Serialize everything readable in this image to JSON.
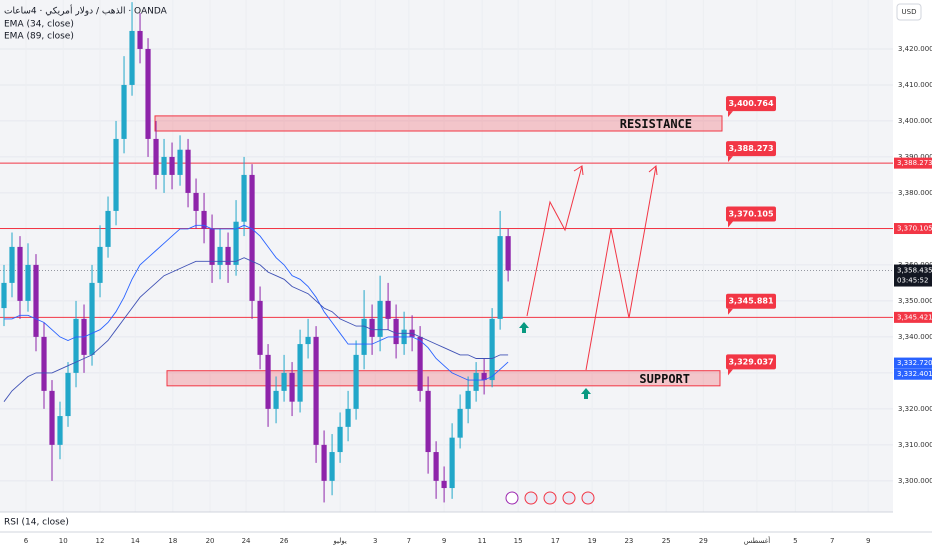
{
  "header": {
    "symbol": "الذهب / دولار أمريكي · 4ساعات · OANDA",
    "indicators": [
      "EMA (34, close)",
      "EMA (89, close)"
    ],
    "rsi": "RSI (14, close)",
    "currency": "USD"
  },
  "chart_data": {
    "type": "candlestick",
    "open": [
      3348,
      3355,
      3365,
      3350,
      3360,
      3340,
      3325,
      3310,
      3318,
      3330,
      3345,
      3335,
      3355,
      3365,
      3375,
      3395,
      3410,
      3425,
      3420,
      3395,
      3385,
      3390,
      3385,
      3392,
      3380,
      3375,
      3370,
      3360,
      3365,
      3360,
      3372,
      3385,
      3350,
      3335,
      3320,
      3325,
      3330,
      3322,
      3338,
      3340,
      3310,
      3300,
      3308,
      3315,
      3320,
      3335,
      3345,
      3340,
      3350,
      3345,
      3338,
      3342,
      3340,
      3325,
      3308,
      3300,
      3298,
      3312,
      3320,
      3325,
      3330,
      3328,
      3345,
      3368
    ],
    "high": [
      3360,
      3369,
      3368,
      3366,
      3363,
      3344,
      3328,
      3322,
      3333,
      3350,
      3349,
      3360,
      3371,
      3379,
      3400,
      3418,
      3433,
      3430,
      3423,
      3400,
      3395,
      3394,
      3396,
      3395,
      3384,
      3380,
      3374,
      3370,
      3369,
      3378,
      3390,
      3388,
      3354,
      3338,
      3329,
      3335,
      3333,
      3342,
      3345,
      3343,
      3314,
      3313,
      3319,
      3325,
      3339,
      3353,
      3349,
      3357,
      3355,
      3349,
      3347,
      3346,
      3343,
      3329,
      3311,
      3304,
      3316,
      3324,
      3329,
      3333,
      3334,
      3348,
      3375,
      3370
    ],
    "low": [
      3343,
      3351,
      3345,
      3347,
      3336,
      3320,
      3300,
      3306,
      3315,
      3326,
      3330,
      3332,
      3351,
      3362,
      3371,
      3391,
      3407,
      3416,
      3390,
      3381,
      3380,
      3381,
      3382,
      3376,
      3370,
      3366,
      3355,
      3356,
      3355,
      3357,
      3368,
      3345,
      3331,
      3315,
      3316,
      3322,
      3318,
      3319,
      3334,
      3305,
      3294,
      3296,
      3305,
      3311,
      3317,
      3331,
      3335,
      3336,
      3342,
      3334,
      3335,
      3336,
      3322,
      3302,
      3295,
      3294,
      3295,
      3309,
      3316,
      3322,
      3324,
      3326,
      3342,
      3355.4
    ],
    "close": [
      3355,
      3365,
      3350,
      3360,
      3340,
      3325,
      3310,
      3318,
      3330,
      3345,
      3335,
      3355,
      3365,
      3375,
      3395,
      3410,
      3425,
      3420,
      3395,
      3385,
      3390,
      3385,
      3392,
      3380,
      3375,
      3370,
      3360,
      3365,
      3360,
      3372,
      3385,
      3350,
      3335,
      3320,
      3325,
      3330,
      3322,
      3338,
      3340,
      3310,
      3300,
      3308,
      3315,
      3320,
      3335,
      3345,
      3340,
      3350,
      3345,
      3338,
      3342,
      3340,
      3325,
      3308,
      3300,
      3298,
      3312,
      3320,
      3325,
      3330,
      3328,
      3345,
      3368,
      3358.435
    ],
    "up_color": "#22a7c9",
    "down_color": "#8e24aa",
    "series": [
      {
        "name": "EMA (34, close)",
        "color": "#2962ff",
        "values": [
          3345,
          3345,
          3346,
          3346,
          3345,
          3344,
          3342,
          3340,
          3339,
          3340,
          3340,
          3341,
          3342,
          3344,
          3347,
          3351,
          3356,
          3360,
          3362,
          3364,
          3366,
          3368,
          3370,
          3370,
          3371,
          3371,
          3370,
          3370,
          3370,
          3370,
          3371,
          3370,
          3368,
          3365,
          3362,
          3360,
          3357,
          3356,
          3354,
          3351,
          3347,
          3344,
          3341,
          3338,
          3338,
          3338,
          3338,
          3339,
          3340,
          3340,
          3340,
          3340,
          3339,
          3337,
          3334,
          3332,
          3330,
          3329,
          3328,
          3328,
          3328,
          3329,
          3331,
          3333
        ]
      },
      {
        "name": "EMA (89, close)",
        "color": "#3f51b5",
        "values": [
          3322,
          3325,
          3327,
          3329,
          3330,
          3330,
          3330,
          3331,
          3332,
          3333,
          3334,
          3335,
          3337,
          3339,
          3342,
          3345,
          3348,
          3351,
          3353,
          3355,
          3357,
          3358,
          3359,
          3360,
          3361,
          3361,
          3361,
          3361,
          3361,
          3361,
          3362,
          3361,
          3360,
          3358,
          3357,
          3356,
          3354,
          3353,
          3352,
          3350,
          3348,
          3347,
          3345,
          3344,
          3343,
          3343,
          3342,
          3342,
          3342,
          3341,
          3341,
          3341,
          3340,
          3339,
          3338,
          3337,
          3336,
          3335,
          3335,
          3334,
          3334,
          3334,
          3335,
          3335
        ]
      }
    ],
    "xlim": [
      -0.5,
      111.1
    ],
    "ylim": [
      3291.9,
      3433.6
    ],
    "xticks": [
      {
        "value": 2.75,
        "label": "6"
      },
      {
        "value": 7.4,
        "label": "10"
      },
      {
        "value": 12,
        "label": "12"
      },
      {
        "value": 16.4,
        "label": "14"
      },
      {
        "value": 21.1,
        "label": "18"
      },
      {
        "value": 25.75,
        "label": "20"
      },
      {
        "value": 30.25,
        "label": "24"
      },
      {
        "value": 35,
        "label": "26"
      },
      {
        "value": 42,
        "label": "يوليو"
      },
      {
        "value": 46.4,
        "label": "3"
      },
      {
        "value": 50.6,
        "label": "7"
      },
      {
        "value": 55,
        "label": "9"
      },
      {
        "value": 59.75,
        "label": "11"
      },
      {
        "value": 64.25,
        "label": "15"
      },
      {
        "value": 68.9,
        "label": "17"
      },
      {
        "value": 73.5,
        "label": "19"
      },
      {
        "value": 78.1,
        "label": "23"
      },
      {
        "value": 82.75,
        "label": "25"
      },
      {
        "value": 87.4,
        "label": "29"
      },
      {
        "value": 94.1,
        "label": "أغسطس"
      },
      {
        "value": 98.9,
        "label": "5"
      },
      {
        "value": 103.5,
        "label": "7"
      },
      {
        "value": 108,
        "label": "9"
      }
    ],
    "yticks": [
      {
        "value": 3300,
        "label": "3,300.000"
      },
      {
        "value": 3310,
        "label": "3,310.000"
      },
      {
        "value": 3320,
        "label": "3,320.000"
      },
      {
        "value": 3330,
        "label": "3,330.000"
      },
      {
        "value": 3340,
        "label": "3,340.000"
      },
      {
        "value": 3350,
        "label": "3,350.000"
      },
      {
        "value": 3360,
        "label": "3,360.000"
      },
      {
        "value": 3370,
        "label": "3,370.000"
      },
      {
        "value": 3380,
        "label": "3,380.000"
      },
      {
        "value": 3390,
        "label": "3,390.000"
      },
      {
        "value": 3400,
        "label": "3,400.000"
      },
      {
        "value": 3410,
        "label": "3,410.000"
      },
      {
        "value": 3420,
        "label": "3,420.000"
      }
    ],
    "levels": [
      {
        "value": 3388.273,
        "color": "#f23645"
      },
      {
        "value": 3370.105,
        "color": "#f23645"
      },
      {
        "value": 3345.421,
        "color": "#f23645"
      }
    ],
    "zones": [
      {
        "name": "RESISTANCE",
        "range": [
          3397.2,
          3401.4
        ]
      },
      {
        "name": "SUPPORT",
        "range": [
          3326.4,
          3330.6
        ]
      }
    ],
    "price_labels": [
      {
        "value": 3388.273,
        "label": "3,388.273",
        "color": "#f23645"
      },
      {
        "value": 3370.105,
        "label": "3,370.105",
        "color": "#f23645"
      },
      {
        "value": 3345.421,
        "label": "3,345.421",
        "color": "#f23645"
      },
      {
        "value": 3332.72,
        "label": "3,332.720",
        "color": "#2962ff"
      },
      {
        "value": 3332.401,
        "label": "3,332.401",
        "color": "#2962ff"
      }
    ],
    "last_price": {
      "value": 3358.435,
      "label": "3,358.435",
      "countdown": "03:45:52"
    },
    "annotations": [
      {
        "value": 3400.764,
        "label": "3,400.764"
      },
      {
        "value": 3388.273,
        "label": "3,388.273"
      },
      {
        "value": 3370.105,
        "label": "3,370.105"
      },
      {
        "value": 3345.881,
        "label": "3,345.881"
      },
      {
        "value": 3329.037,
        "label": "3,329.037"
      }
    ]
  }
}
